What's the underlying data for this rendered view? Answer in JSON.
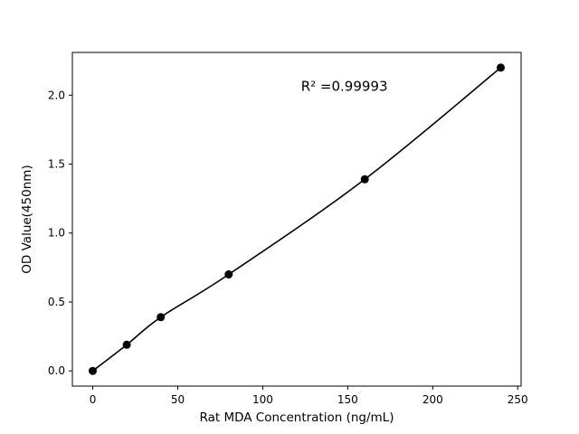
{
  "chart_data": {
    "type": "scatter",
    "line": true,
    "x": [
      0,
      20,
      40,
      80,
      160,
      240
    ],
    "y": [
      0.0,
      0.19,
      0.39,
      0.7,
      1.39,
      2.2
    ],
    "title": "",
    "xlabel": "Rat MDA Concentration (ng/mL)",
    "ylabel": "OD Value(450nm)",
    "annotation": {
      "text": "R² =0.99993",
      "x": 148,
      "y": 2.03
    },
    "xlim": [
      -12,
      252
    ],
    "ylim": [
      -0.11,
      2.31
    ],
    "xticks": [
      0,
      50,
      100,
      150,
      200,
      250
    ],
    "xtick_labels": [
      "0",
      "50",
      "100",
      "150",
      "200",
      "250"
    ],
    "yticks": [
      0.0,
      0.5,
      1.0,
      1.5,
      2.0
    ],
    "ytick_labels": [
      "0.0",
      "0.5",
      "1.0",
      "1.5",
      "2.0"
    ],
    "legend": null,
    "grid": false,
    "colors": {
      "line": "#000000",
      "marker": "#000000",
      "text": "#000000",
      "background": "#ffffff"
    }
  }
}
